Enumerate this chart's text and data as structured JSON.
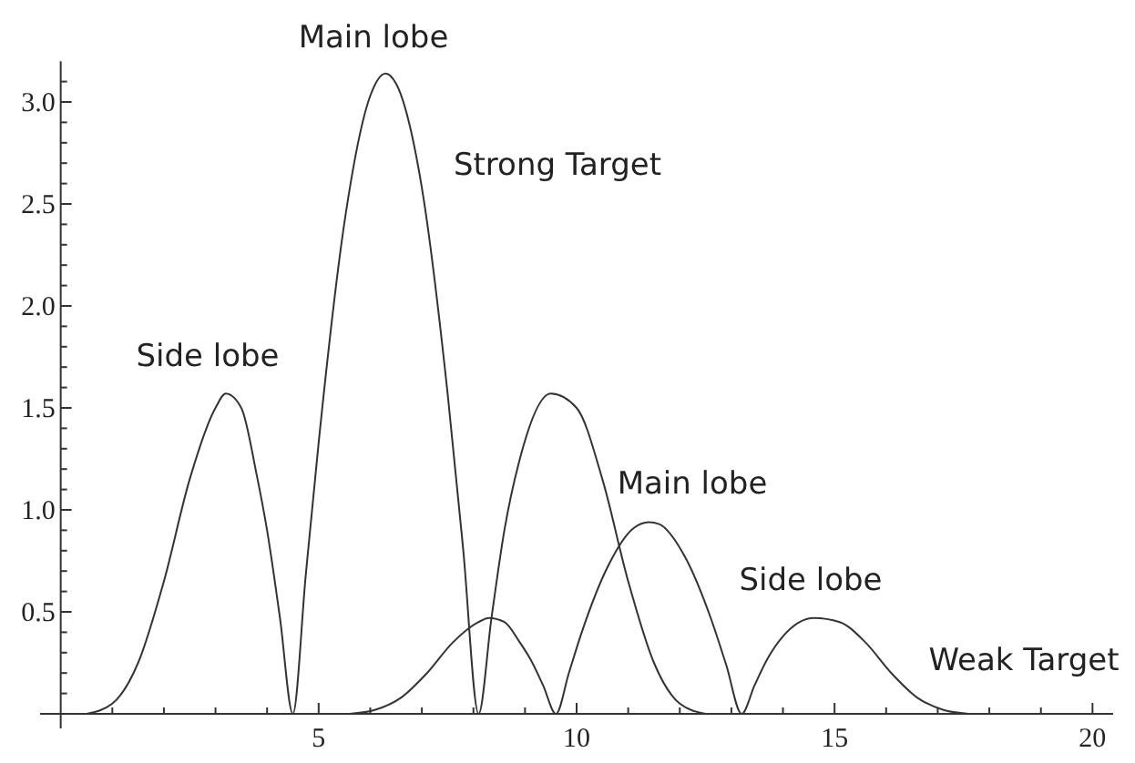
{
  "chart_data": {
    "type": "line",
    "xlim": [
      -0.4,
      20.4
    ],
    "ylim": [
      0,
      3.2
    ],
    "xticks": [
      {
        "value": 1,
        "label": null
      },
      {
        "value": 2,
        "label": null
      },
      {
        "value": 3,
        "label": null
      },
      {
        "value": 4,
        "label": null
      },
      5,
      {
        "value": 6,
        "label": null
      },
      {
        "value": 7,
        "label": null
      },
      {
        "value": 8,
        "label": null
      },
      {
        "value": 9,
        "label": null
      },
      10,
      {
        "value": 11,
        "label": null
      },
      {
        "value": 12,
        "label": null
      },
      {
        "value": 13,
        "label": null
      },
      {
        "value": 14,
        "label": null
      },
      15,
      {
        "value": 16,
        "label": null
      },
      {
        "value": 17,
        "label": null
      },
      {
        "value": 18,
        "label": null
      },
      {
        "value": 19,
        "label": null
      },
      20
    ],
    "yticks": [
      {
        "value": 0.1,
        "label": null
      },
      {
        "value": 0.2,
        "label": null
      },
      {
        "value": 0.3,
        "label": null
      },
      {
        "value": 0.4,
        "label": null
      },
      {
        "value": 0.5,
        "label": "0.5"
      },
      {
        "value": 0.6,
        "label": null
      },
      {
        "value": 0.7,
        "label": null
      },
      {
        "value": 0.8,
        "label": null
      },
      {
        "value": 0.9,
        "label": null
      },
      {
        "value": 1,
        "label": "1.0"
      },
      {
        "value": 1.1,
        "label": null
      },
      {
        "value": 1.2,
        "label": null
      },
      {
        "value": 1.3,
        "label": null
      },
      {
        "value": 1.4,
        "label": null
      },
      {
        "value": 1.5,
        "label": "1.5"
      },
      {
        "value": 1.6,
        "label": null
      },
      {
        "value": 1.7,
        "label": null
      },
      {
        "value": 1.8,
        "label": null
      },
      {
        "value": 1.9,
        "label": null
      },
      {
        "value": 2,
        "label": "2.0"
      },
      {
        "value": 2.1,
        "label": null
      },
      {
        "value": 2.2,
        "label": null
      },
      {
        "value": 2.3,
        "label": null
      },
      {
        "value": 2.4,
        "label": null
      },
      {
        "value": 2.5,
        "label": "2.5"
      },
      {
        "value": 2.6,
        "label": null
      },
      {
        "value": 2.7,
        "label": null
      },
      {
        "value": 2.8,
        "label": null
      },
      {
        "value": 2.9,
        "label": null
      },
      {
        "value": 3,
        "label": "3.0"
      },
      {
        "value": 3.1,
        "label": null
      }
    ],
    "grid": false,
    "marker": "none",
    "line_style": "solid",
    "series": [
      {
        "color": "#333333",
        "x": [
          0.5,
          1,
          1.5,
          2,
          2.5,
          3,
          3.2,
          3.5,
          3.8,
          4,
          4.25,
          4.5,
          4.75,
          5,
          5.5,
          6,
          6.3,
          6.5,
          7,
          7.5,
          7.8,
          8.1,
          8.35,
          8.6,
          8.9,
          9.5,
          10,
          10.5,
          11,
          11.5,
          12,
          12.5
        ],
        "values": [
          0,
          0.05,
          0.25,
          0.65,
          1.15,
          1.5,
          1.57,
          1.5,
          1.17,
          0.9,
          0.47,
          0,
          0.68,
          1.33,
          2.41,
          3.03,
          3.14,
          3.09,
          2.58,
          1.57,
          0.81,
          0,
          0.47,
          0.9,
          1.25,
          1.57,
          1.5,
          1.15,
          0.65,
          0.25,
          0.05,
          0
        ]
      },
      {
        "color": "#333333",
        "x": [
          5.6,
          6.1,
          6.6,
          7.1,
          7.6,
          8.1,
          8.3,
          8.6,
          8.9,
          9.1,
          9.35,
          9.6,
          9.85,
          10.1,
          10.6,
          11.1,
          11.4,
          11.6,
          12.1,
          12.6,
          12.9,
          13.2,
          13.45,
          13.7,
          14,
          14.6,
          15.1,
          15.6,
          16.1,
          16.6,
          17.1,
          17.6
        ],
        "values": [
          0,
          0.02,
          0.08,
          0.2,
          0.35,
          0.45,
          0.47,
          0.45,
          0.35,
          0.27,
          0.14,
          0,
          0.2,
          0.4,
          0.72,
          0.91,
          0.94,
          0.93,
          0.77,
          0.47,
          0.24,
          0,
          0.14,
          0.27,
          0.38,
          0.47,
          0.45,
          0.35,
          0.2,
          0.08,
          0.02,
          0
        ]
      }
    ],
    "annotations": [
      "Side lobe",
      "Main lobe",
      "Strong Target",
      "Main lobe",
      "Side lobe",
      "Weak Target"
    ]
  }
}
